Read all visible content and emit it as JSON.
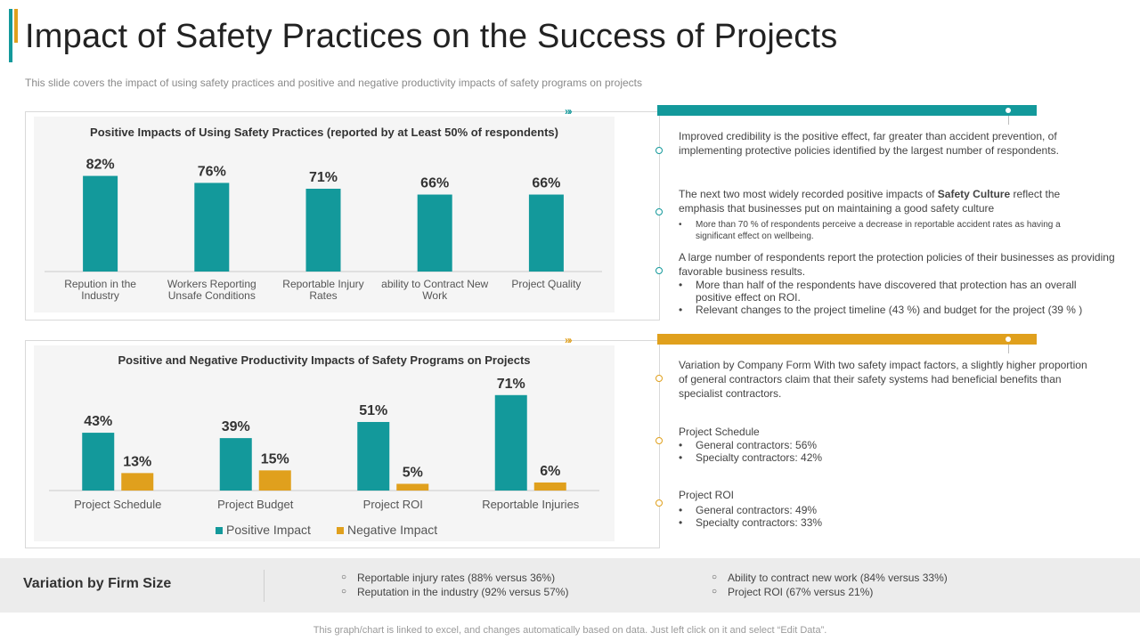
{
  "header": {
    "title": "Impact of Safety Practices on the Success of Projects",
    "subtitle": "This slide covers the impact of using safety practices and positive and negative  productivity impacts of safety programs on projects"
  },
  "colors": {
    "teal": "#13999b",
    "gold": "#e0a01d"
  },
  "icons": {
    "chevrons": "»›"
  },
  "chart_data": [
    {
      "type": "bar",
      "title": "Positive Impacts of Using Safety Practices (reported by at Least 50%  of respondents)",
      "categories": [
        [
          "Repution in the",
          "Industry"
        ],
        [
          "Workers Reporting",
          "Unsafe Conditions"
        ],
        [
          "Reportable Injury",
          "Rates"
        ],
        [
          "ability to Contract New",
          "Work"
        ],
        [
          "Project Quality"
        ]
      ],
      "series": [
        {
          "values": [
            82,
            76,
            71,
            66,
            66
          ],
          "labels": [
            "82%",
            "76%",
            "71%",
            "66%",
            "66%"
          ],
          "color": "#13999b"
        }
      ],
      "ylim": [
        0,
        100
      ],
      "grid": false
    },
    {
      "type": "bar",
      "title": "Positive and Negative Productivity Impacts of Safety Programs on Projects",
      "categories": [
        [
          "Project Schedule"
        ],
        [
          "Project Budget"
        ],
        [
          "Project ROI"
        ],
        [
          "Reportable Injuries"
        ]
      ],
      "series": [
        {
          "name": "Positive Impact",
          "values": [
            43,
            39,
            51,
            71
          ],
          "labels": [
            "43%",
            "39%",
            "51%",
            "71%"
          ],
          "color": "#13999b"
        },
        {
          "name": "Negative Impact",
          "values": [
            13,
            15,
            5,
            6
          ],
          "labels": [
            "13%",
            "15%",
            "5%",
            "6%"
          ],
          "color": "#e0a01d"
        }
      ],
      "ylim": [
        0,
        100
      ],
      "grid": false,
      "legend": "bottom"
    }
  ],
  "right_top": {
    "p1": "Improved  credibility is the positive effect, far greater than accident prevention,  of implementing protective  policies identified by the largest number of respondents.",
    "p2_before": "The next two most widely recorded positive impacts of ",
    "p2_bold": "Safety Culture",
    "p2_after": " reflect the emphasis that businesses put on maintaining  a good safety culture",
    "p2_bullet": "More than 70 % of respondents perceive a decrease in reportable accident rates as having a significant effect on wellbeing.",
    "p3": "A large  number of respondents  report  the protection policies of their businesses as providing favorable   business results.",
    "p3_bullets": [
      "More than half of the respondents have discovered that protection has an overall positive effect on ROI.",
      "Relevant changes to the project timeline (43 %) and budget for the project (39 % )"
    ]
  },
  "right_bottom": {
    "p1": "Variation by Company Form With two safety impact factors, a slightly higher proportion of general contractors claim that their safety systems had beneficial benefits than specialist contractors.",
    "schedule_title": "Project Schedule",
    "schedule_items": [
      "General contractors: 56%",
      "Specialty contractors: 42%"
    ],
    "roi_title": "Project ROI",
    "roi_items": [
      "General contractors: 49%",
      "Specialty contractors: 33%"
    ]
  },
  "footer": {
    "title": "Variation by Firm Size",
    "col1": [
      "Reportable injury rates (88% versus  36%)",
      "Reputation  in the industry (92% versus  57%)"
    ],
    "col2": [
      "Ability to contract new work (84% versus  33%)",
      "Project ROI (67% versus  21%)"
    ],
    "note": "This graph/chart is linked to excel,  and changes automatically based on data. Just left click on it and select “Edit Data”."
  }
}
